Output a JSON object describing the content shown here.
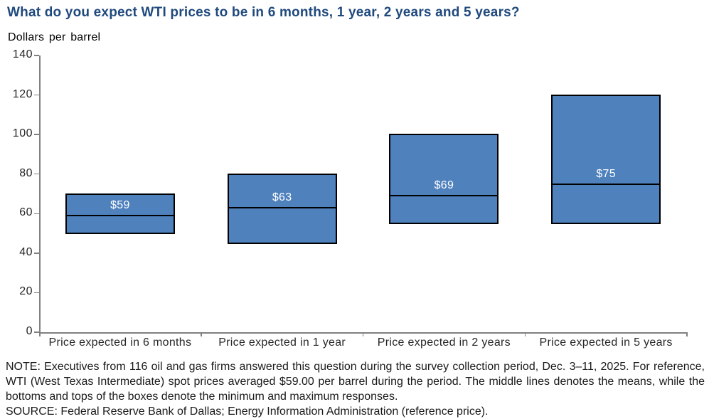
{
  "title": "What do you expect WTI prices to be in 6 months, 1 year, 2 years and 5 years?",
  "axis_unit_label": "Dollars per barrel",
  "colors": {
    "title": "#1F497D",
    "box_fill": "#4F81BD",
    "box_border": "#000000",
    "mean_line": "#000000",
    "axis": "#808080",
    "value_label": "#FFFFFF"
  },
  "chart_data": {
    "type": "box",
    "title": "What do you expect WTI prices to be in 6 months, 1 year, 2 years and 5 years?",
    "ylabel": "Dollars per barrel",
    "xlabel": "",
    "ylim": [
      0,
      140
    ],
    "yticks": [
      0,
      20,
      40,
      60,
      80,
      100,
      120,
      140
    ],
    "grid": false,
    "legend": false,
    "box_meaning": "bottom of box = minimum response, top of box = maximum response, middle line = mean",
    "categories": [
      "Price expected in 6 months",
      "Price expected in 1 year",
      "Price expected in 2 years",
      "Price expected in 5 years"
    ],
    "series": [
      {
        "name": "Price expected in 6 months",
        "min": 50,
        "mean": 59,
        "max": 70,
        "mean_label": "$59"
      },
      {
        "name": "Price expected in 1 year",
        "min": 45,
        "mean": 63,
        "max": 80,
        "mean_label": "$63"
      },
      {
        "name": "Price expected in 2 years",
        "min": 55,
        "mean": 69,
        "max": 100,
        "mean_label": "$69"
      },
      {
        "name": "Price expected in 5 years",
        "min": 55,
        "mean": 75,
        "max": 120,
        "mean_label": "$75"
      }
    ]
  },
  "note": {
    "note_text": "NOTE: Executives from 116 oil and gas firms answered this question during the survey collection period, Dec. 3–11, 2025. For reference, WTI (West Texas Intermediate) spot prices averaged $59.00 per barrel during the period. The middle lines denotes the means, while the bottoms and tops of the boxes denote the minimum and maximum responses.",
    "source_text": "SOURCE: Federal Reserve Bank of Dallas; Energy Information Administration (reference price)."
  }
}
